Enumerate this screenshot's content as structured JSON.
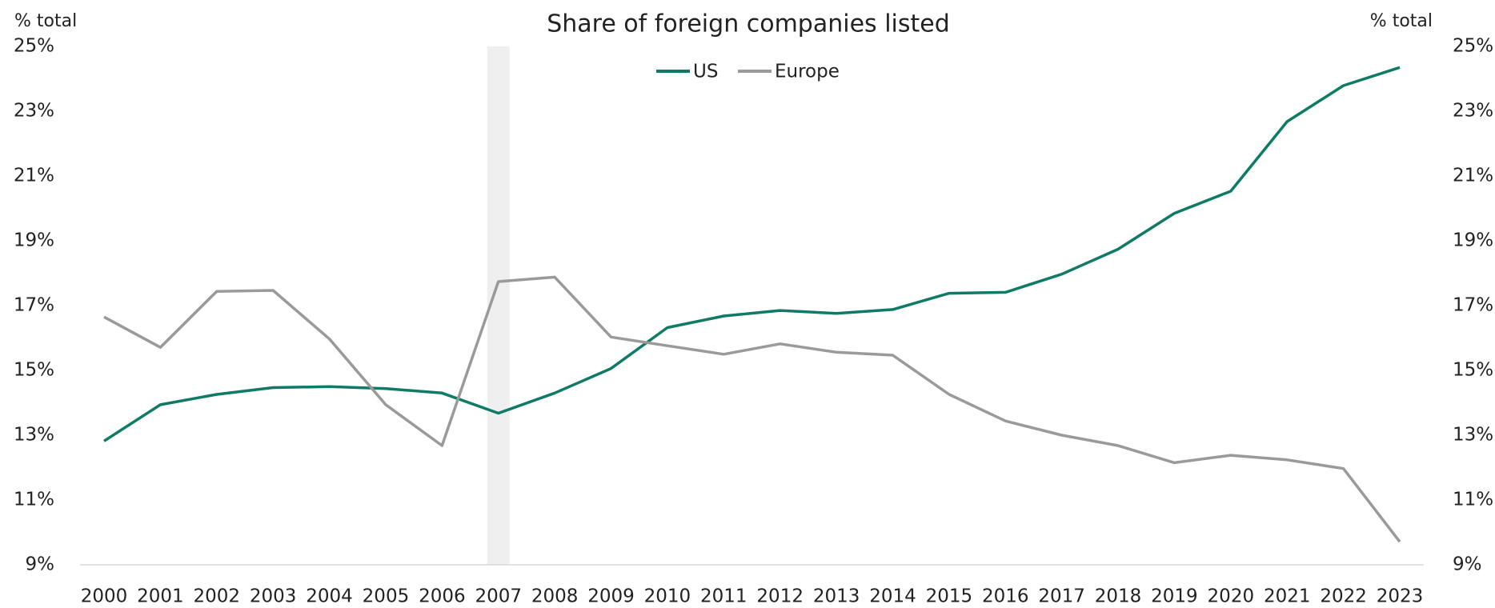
{
  "chart_data": {
    "type": "line",
    "title": "Share of foreign companies listed",
    "y_label": "% total",
    "y2_label": "% total",
    "categories": [
      "2000",
      "2001",
      "2002",
      "2003",
      "2004",
      "2005",
      "2006",
      "2007",
      "2008",
      "2009",
      "2010",
      "2011",
      "2012",
      "2013",
      "2014",
      "2015",
      "2016",
      "2017",
      "2018",
      "2019",
      "2020",
      "2021",
      "2022",
      "2023"
    ],
    "series": [
      {
        "name": "US",
        "color": "#0f7b66",
        "values": [
          12.82,
          13.94,
          14.26,
          14.47,
          14.5,
          14.44,
          14.3,
          13.68,
          14.3,
          15.06,
          16.32,
          16.68,
          16.85,
          16.76,
          16.88,
          17.38,
          17.41,
          17.97,
          18.74,
          19.85,
          20.53,
          22.68,
          23.79,
          24.35
        ]
      },
      {
        "name": "Europe",
        "color": "#9a9a9a",
        "values": [
          16.65,
          15.71,
          17.44,
          17.47,
          15.97,
          13.94,
          12.68,
          17.74,
          17.88,
          16.03,
          15.76,
          15.5,
          15.82,
          15.56,
          15.47,
          14.26,
          13.44,
          13.0,
          12.68,
          12.15,
          12.38,
          12.24,
          11.97,
          9.71
        ]
      }
    ],
    "shaded": [
      "2007"
    ],
    "ylim": [
      9,
      25
    ],
    "yticks": [
      {
        "value": 9,
        "label": "9%"
      },
      {
        "value": 11,
        "label": "11%"
      },
      {
        "value": 13,
        "label": "13%"
      },
      {
        "value": 15,
        "label": "15%"
      },
      {
        "value": 17,
        "label": "17%"
      },
      {
        "value": 19,
        "label": "19%"
      },
      {
        "value": 21,
        "label": "21%"
      },
      {
        "value": 23,
        "label": "23%"
      },
      {
        "value": 25,
        "label": "25%"
      }
    ],
    "y2lim": [
      9,
      25
    ],
    "y2ticks": [
      {
        "value": 9,
        "label": "9%"
      },
      {
        "value": 11,
        "label": "11%"
      },
      {
        "value": 13,
        "label": "13%"
      },
      {
        "value": 15,
        "label": "15%"
      },
      {
        "value": 17,
        "label": "17%"
      },
      {
        "value": 19,
        "label": "19%"
      },
      {
        "value": 21,
        "label": "21%"
      },
      {
        "value": 23,
        "label": "23%"
      },
      {
        "value": 25,
        "label": "25%"
      }
    ],
    "legend": "top",
    "grid": false
  }
}
